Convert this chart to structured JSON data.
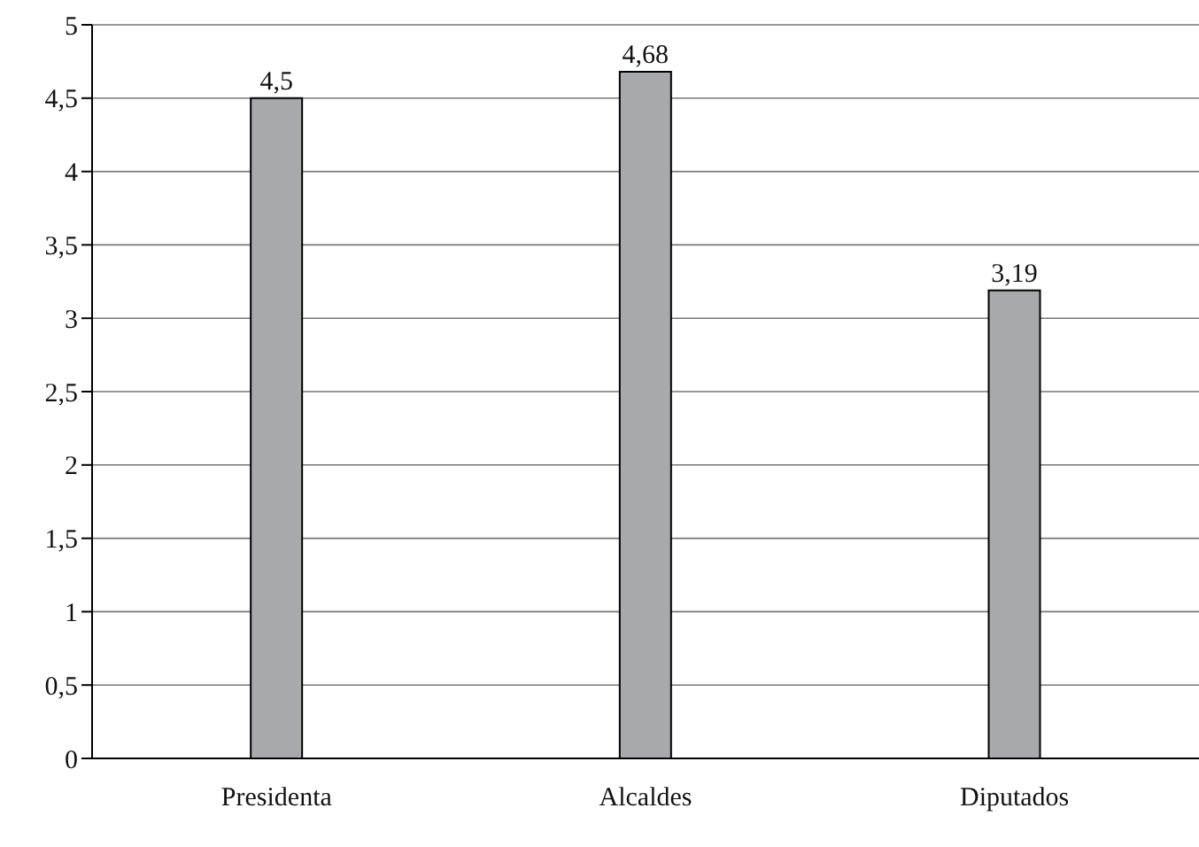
{
  "chart_data": {
    "type": "bar",
    "categories": [
      "Presidenta",
      "Alcaldes",
      "Diputados"
    ],
    "values": [
      4.5,
      4.68,
      3.19
    ],
    "value_labels": [
      "4,5",
      "4,68",
      "3,19"
    ],
    "color": "#a7a9ac",
    "ylim": [
      0,
      5
    ],
    "yticks": [
      0,
      {
        "value": 0.5,
        "label": "0,5"
      },
      1,
      {
        "value": 1.5,
        "label": "1,5"
      },
      2,
      {
        "value": 2.5,
        "label": "2,5"
      },
      3,
      {
        "value": 3.5,
        "label": "3,5"
      },
      4,
      {
        "value": 4.5,
        "label": "4,5"
      },
      5
    ],
    "grid": "y",
    "legend": false
  }
}
